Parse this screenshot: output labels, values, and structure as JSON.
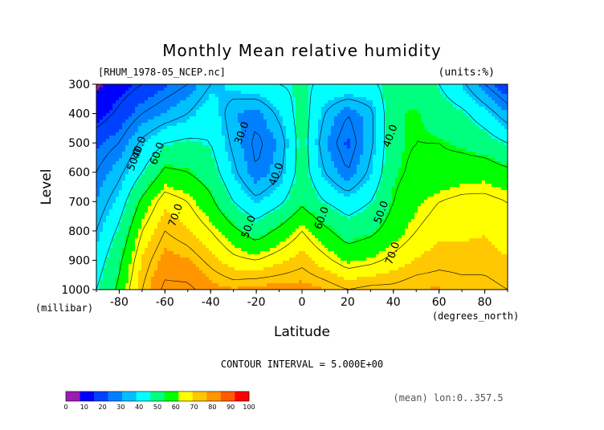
{
  "chart_data": {
    "type": "heatmap",
    "subtype": "filled-contour",
    "title": "Monthly Mean relative humidity",
    "dataset": "[RHUM_1978-05_NCEP.nc]",
    "units": "(units:%)",
    "xlabel": "Latitude",
    "xunits": "(degrees_north)",
    "ylabel": "Level",
    "yunits": "(millibar)",
    "xlim": [
      -90,
      90
    ],
    "ylim": [
      1000,
      300
    ],
    "xticks": [
      "-80",
      "-60",
      "-40",
      "-20",
      "0",
      "20",
      "40",
      "60",
      "80"
    ],
    "xtick_values": [
      -80,
      -60,
      -40,
      -20,
      0,
      20,
      40,
      60,
      80
    ],
    "yticks": [
      "300",
      "400",
      "500",
      "600",
      "700",
      "800",
      "900",
      "1000"
    ],
    "ytick_values": [
      300,
      400,
      500,
      600,
      700,
      800,
      900,
      1000
    ],
    "contour_interval": "CONTOUR INTERVAL = 5.000E+00",
    "averaging_note": "(mean) lon:0..357.5",
    "contour_labels": [
      {
        "text": "30.0",
        "lat": -25,
        "level": 470
      },
      {
        "text": "40.0",
        "lat": 40,
        "level": 480
      },
      {
        "text": "40.0",
        "lat": -10,
        "level": 610
      },
      {
        "text": "40.0",
        "lat": -70,
        "level": 520
      },
      {
        "text": "50.0",
        "lat": -72,
        "level": 560
      },
      {
        "text": "60.0",
        "lat": -62,
        "level": 540
      },
      {
        "text": "70.0",
        "lat": -54,
        "level": 750
      },
      {
        "text": "50.0",
        "lat": -22,
        "level": 790
      },
      {
        "text": "60.0",
        "lat": 10,
        "level": 760
      },
      {
        "text": "50.0",
        "lat": 36,
        "level": 740
      },
      {
        "text": "70.0",
        "lat": 41,
        "level": 880
      }
    ],
    "field_rows_levels": [
      300,
      400,
      500,
      600,
      700,
      800,
      900,
      1000
    ],
    "field_cols_lat": [
      -90,
      -80,
      -70,
      -60,
      -50,
      -40,
      -30,
      -20,
      -10,
      0,
      10,
      20,
      30,
      40,
      50,
      60,
      70,
      80,
      90
    ],
    "field_values": [
      [
        8,
        15,
        20,
        25,
        30,
        40,
        45,
        48,
        50,
        52,
        48,
        50,
        48,
        55,
        55,
        50,
        42,
        30,
        20
      ],
      [
        15,
        22,
        30,
        35,
        40,
        48,
        35,
        32,
        42,
        55,
        40,
        30,
        38,
        58,
        60,
        55,
        52,
        45,
        35
      ],
      [
        25,
        30,
        42,
        50,
        52,
        50,
        38,
        28,
        35,
        55,
        35,
        25,
        38,
        58,
        60,
        60,
        58,
        55,
        50
      ],
      [
        30,
        38,
        50,
        62,
        60,
        55,
        42,
        30,
        38,
        55,
        40,
        30,
        42,
        58,
        62,
        62,
        64,
        65,
        62
      ],
      [
        35,
        45,
        62,
        74,
        70,
        62,
        50,
        42,
        48,
        58,
        50,
        45,
        50,
        60,
        66,
        70,
        72,
        72,
        70
      ],
      [
        40,
        52,
        70,
        80,
        76,
        70,
        62,
        55,
        62,
        70,
        62,
        55,
        58,
        64,
        70,
        74,
        74,
        75,
        72
      ],
      [
        45,
        58,
        76,
        86,
        84,
        78,
        72,
        70,
        74,
        78,
        72,
        66,
        68,
        72,
        76,
        78,
        78,
        78,
        76
      ],
      [
        50,
        62,
        80,
        92,
        92,
        86,
        84,
        86,
        86,
        86,
        84,
        80,
        82,
        82,
        84,
        84,
        82,
        82,
        80
      ]
    ],
    "colorbar": {
      "ticks": [
        "0",
        "10",
        "20",
        "30",
        "40",
        "50",
        "60",
        "70",
        "80",
        "90",
        "100"
      ],
      "colors": [
        "#9b1bb5",
        "#0000ff",
        "#0040ff",
        "#0080ff",
        "#00c0ff",
        "#00ffff",
        "#00ff7f",
        "#00ff00",
        "#ffff00",
        "#ffc800",
        "#ff9600",
        "#ff5a00",
        "#ff0000"
      ]
    },
    "levels_bounds": [
      0,
      10,
      20,
      30,
      40,
      50,
      60,
      70,
      80,
      90,
      100
    ]
  }
}
